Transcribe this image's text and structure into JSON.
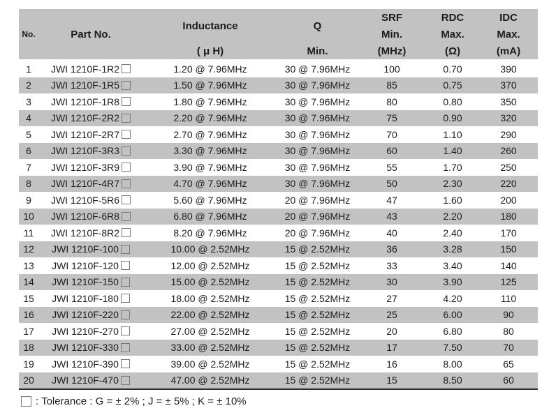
{
  "colors": {
    "header_bg": "#c2c2c2",
    "alt_row_bg": "#c2c2c2",
    "text": "#1c1c1c",
    "bottom_rule": "#2d2d2d",
    "tolerance_box_border": "#7a7a7a"
  },
  "icons": {
    "tolerance_box": "square-outline"
  },
  "table": {
    "columns": [
      {
        "label": "No."
      },
      {
        "label": "Part No."
      },
      {
        "label": "Inductance",
        "line3": "( μ H)"
      },
      {
        "label": "Q",
        "line3": "Min."
      },
      {
        "label": "SRF",
        "line2": "Min.",
        "line3": "(MHz)"
      },
      {
        "label": "RDC",
        "line2": "Max.",
        "line3": "(Ω)"
      },
      {
        "label": "IDC",
        "line2": "Max.",
        "line3": "(mA)"
      }
    ],
    "rows": [
      {
        "no": "1",
        "part": "JWI 1210F-1R2",
        "inductance": "1.20 @ 7.96MHz",
        "q": "30 @ 7.96MHz",
        "srf": "100",
        "rdc": "0.70",
        "idc": "390"
      },
      {
        "no": "2",
        "part": "JWI 1210F-1R5",
        "inductance": "1.50 @ 7.96MHz",
        "q": "30 @ 7.96MHz",
        "srf": "85",
        "rdc": "0.75",
        "idc": "370"
      },
      {
        "no": "3",
        "part": "JWI 1210F-1R8",
        "inductance": "1.80 @ 7.96MHz",
        "q": "30 @ 7.96MHz",
        "srf": "80",
        "rdc": "0.80",
        "idc": "350"
      },
      {
        "no": "4",
        "part": "JWI 1210F-2R2",
        "inductance": "2.20 @ 7.96MHz",
        "q": "30 @ 7.96MHz",
        "srf": "75",
        "rdc": "0.90",
        "idc": "320"
      },
      {
        "no": "5",
        "part": "JWI 1210F-2R7",
        "inductance": "2.70 @ 7.96MHz",
        "q": "30 @ 7.96MHz",
        "srf": "70",
        "rdc": "1.10",
        "idc": "290"
      },
      {
        "no": "6",
        "part": "JWI 1210F-3R3",
        "inductance": "3.30 @ 7.96MHz",
        "q": "30 @ 7.96MHz",
        "srf": "60",
        "rdc": "1.40",
        "idc": "260"
      },
      {
        "no": "7",
        "part": "JWI 1210F-3R9",
        "inductance": "3.90 @ 7.96MHz",
        "q": "30 @ 7.96MHz",
        "srf": "55",
        "rdc": "1.70",
        "idc": "250"
      },
      {
        "no": "8",
        "part": "JWI 1210F-4R7",
        "inductance": "4.70 @ 7.96MHz",
        "q": "30 @ 7.96MHz",
        "srf": "50",
        "rdc": "2.30",
        "idc": "220"
      },
      {
        "no": "9",
        "part": "JWI 1210F-5R6",
        "inductance": "5.60 @ 7.96MHz",
        "q": "20 @ 7.96MHz",
        "srf": "47",
        "rdc": "1.60",
        "idc": "200"
      },
      {
        "no": "10",
        "part": "JWI 1210F-6R8",
        "inductance": "6.80 @ 7.96MHz",
        "q": "20 @ 7.96MHz",
        "srf": "43",
        "rdc": "2.20",
        "idc": "180"
      },
      {
        "no": "11",
        "part": "JWI 1210F-8R2",
        "inductance": "8.20 @ 7.96MHz",
        "q": "20 @ 7.96MHz",
        "srf": "40",
        "rdc": "2.40",
        "idc": "170"
      },
      {
        "no": "12",
        "part": "JWI 1210F-100",
        "inductance": "10.00 @ 2.52MHz",
        "q": "15 @ 2.52MHz",
        "srf": "36",
        "rdc": "3.28",
        "idc": "150"
      },
      {
        "no": "13",
        "part": "JWI 1210F-120",
        "inductance": "12.00 @ 2.52MHz",
        "q": "15 @ 2.52MHz",
        "srf": "33",
        "rdc": "3.40",
        "idc": "140"
      },
      {
        "no": "14",
        "part": "JWI 1210F-150",
        "inductance": "15.00 @ 2.52MHz",
        "q": "15 @ 2.52MHz",
        "srf": "30",
        "rdc": "3.90",
        "idc": "125"
      },
      {
        "no": "15",
        "part": "JWI 1210F-180",
        "inductance": "18.00 @ 2.52MHz",
        "q": "15 @ 2.52MHz",
        "srf": "27",
        "rdc": "4.20",
        "idc": "110"
      },
      {
        "no": "16",
        "part": "JWI 1210F-220",
        "inductance": "22.00 @ 2.52MHz",
        "q": "15 @ 2.52MHz",
        "srf": "25",
        "rdc": "6.00",
        "idc": "90"
      },
      {
        "no": "17",
        "part": "JWI 1210F-270",
        "inductance": "27.00 @ 2.52MHz",
        "q": "15 @ 2.52MHz",
        "srf": "20",
        "rdc": "6.80",
        "idc": "80"
      },
      {
        "no": "18",
        "part": "JWI 1210F-330",
        "inductance": "33.00 @ 2.52MHz",
        "q": "15 @ 2.52MHz",
        "srf": "17",
        "rdc": "7.50",
        "idc": "70"
      },
      {
        "no": "19",
        "part": "JWI 1210F-390",
        "inductance": "39.00 @ 2.52MHz",
        "q": "15 @ 2.52MHz",
        "srf": "16",
        "rdc": "8.00",
        "idc": "65"
      },
      {
        "no": "20",
        "part": "JWI 1210F-470",
        "inductance": "47.00 @ 2.52MHz",
        "q": "15 @ 2.52MHz",
        "srf": "15",
        "rdc": "8.50",
        "idc": "60"
      }
    ]
  },
  "footnote": {
    "text": ": Tolerance : G = ± 2% ; J = ± 5% ; K = ± 10%"
  }
}
